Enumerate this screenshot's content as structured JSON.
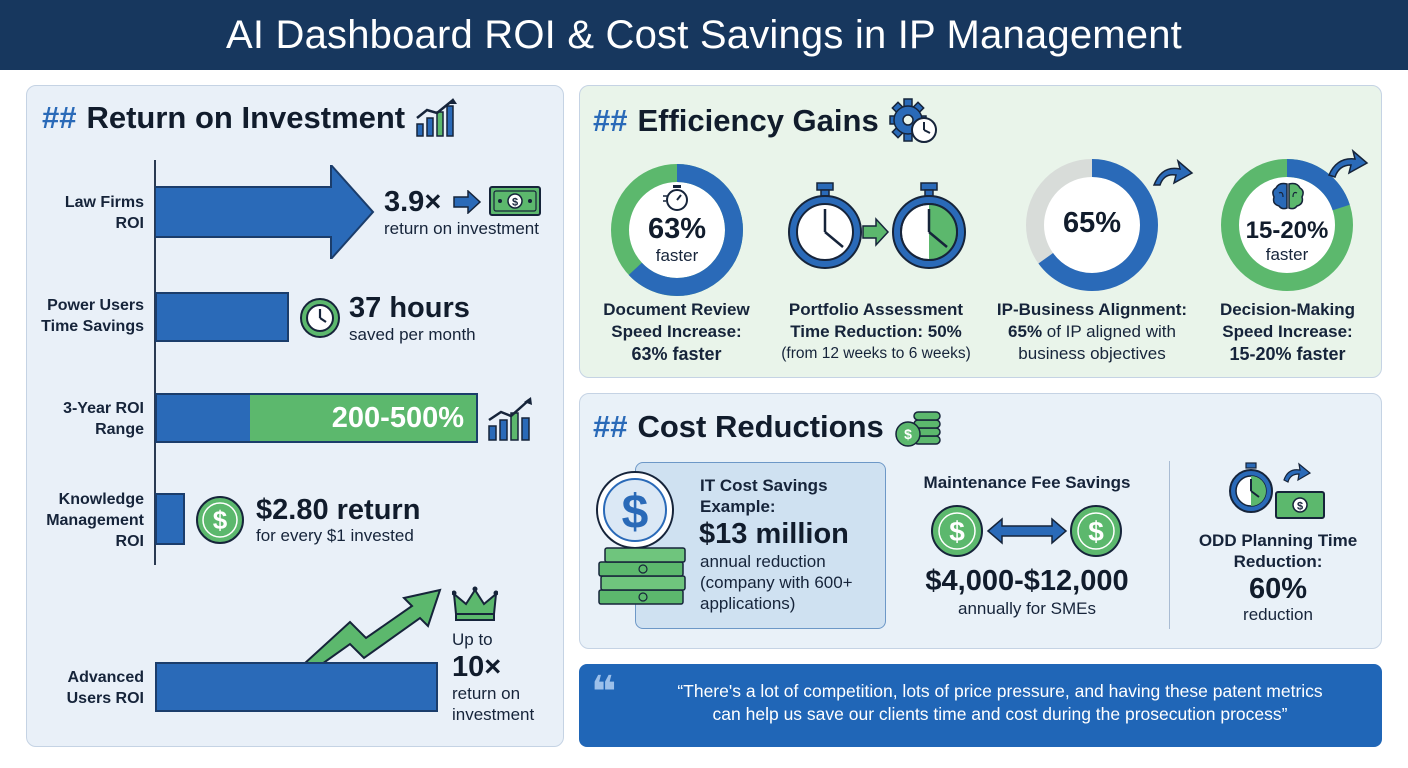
{
  "header": {
    "title": "AI Dashboard ROI & Cost Savings in IP Management"
  },
  "roi": {
    "hash": "##",
    "title": "Return on Investment",
    "items": [
      {
        "label": "Law Firms ROI",
        "value": "3.9×",
        "caption": "return on investment"
      },
      {
        "label": "Power Users Time Savings",
        "value": "37 hours",
        "caption": "saved per month"
      },
      {
        "label": "3-Year ROI Range",
        "value": "200-500%"
      },
      {
        "label": "Knowledge Management ROI",
        "value": "$2.80 return",
        "caption": "for every $1 invested"
      },
      {
        "label": "Advanced Users ROI",
        "prefix": "Up to",
        "value": "10×",
        "caption": "return on investment"
      }
    ]
  },
  "efficiency": {
    "hash": "##",
    "title": "Efficiency Gains",
    "items": [
      {
        "ring_value": "63%",
        "ring_sub": "faster",
        "caption_l1": "Document Review",
        "caption_l2": "Speed Increase:",
        "caption_l3": "63% faster",
        "progress": 0.63
      },
      {
        "caption_l1": "Portfolio Assessment",
        "caption_l2": "Time Reduction: 50%",
        "caption_l3": "(from 12 weeks to 6 weeks)"
      },
      {
        "ring_value": "65%",
        "caption_l1": "IP-Business Alignment:",
        "caption_l2a": "65%",
        "caption_l2b": " of IP aligned with",
        "caption_l3": "business objectives",
        "progress": 0.65
      },
      {
        "ring_value": "15-20%",
        "ring_sub": "faster",
        "caption_l1": "Decision-Making",
        "caption_l2": "Speed Increase:",
        "caption_l3": "15-20% faster",
        "progress": 0.2
      }
    ]
  },
  "cost": {
    "hash": "##",
    "title": "Cost Reductions",
    "it": {
      "l1": "IT Cost Savings",
      "l2": "Example:",
      "value": "$13 million",
      "s1": "annual reduction",
      "s2": "(company with 600+",
      "s3": "applications)"
    },
    "maintenance": {
      "title": "Maintenance Fee Savings",
      "value": "$4,000-$12,000",
      "caption": "annually for SMEs"
    },
    "odd": {
      "l1": "ODD Planning Time",
      "l2": "Reduction:",
      "value": "60%",
      "caption": "reduction"
    }
  },
  "quote": {
    "mark": "❝",
    "line1": "“There's a lot of competition, lots of price pressure, and having these patent metrics",
    "line2": "can help us save our clients time and cost during the prosecution process”"
  },
  "colors": {
    "navy": "#17375e",
    "blue": "#2a6ab8",
    "green": "#5cb86d",
    "quote_bg": "#2066b7"
  }
}
